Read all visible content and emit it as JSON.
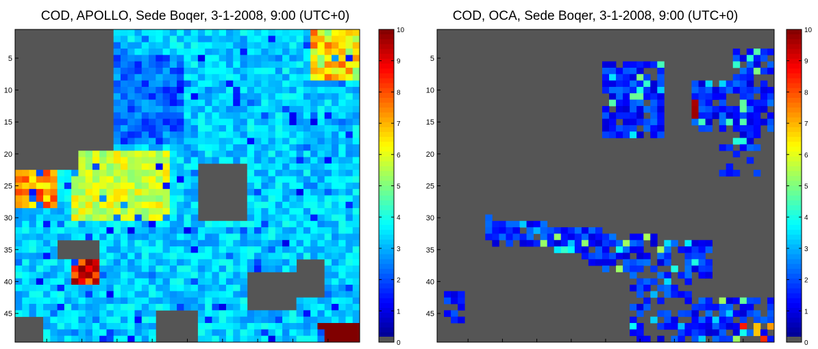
{
  "chart_data": [
    {
      "type": "heatmap",
      "title": "COD, APOLLO, Sede Boqer, 3-1-2008, 9:00 (UTC+0)",
      "grid_size": [
        49,
        49
      ],
      "ytick_labels": [
        "5",
        "10",
        "15",
        "20",
        "25",
        "30",
        "35",
        "40",
        "45"
      ],
      "colorbar": {
        "min": 0,
        "max": 10,
        "tick_labels": [
          "0",
          "1",
          "2",
          "3",
          "4",
          "5",
          "6",
          "7",
          "8",
          "9",
          "10"
        ],
        "colormap": "jet"
      },
      "background_color": "#555555",
      "xlabel": "",
      "ylabel": ""
    },
    {
      "type": "heatmap",
      "title": "COD, OCA, Sede Boqer, 3-1-2008, 9:00 (UTC+0)",
      "grid_size": [
        49,
        49
      ],
      "ytick_labels": [
        "5",
        "10",
        "15",
        "20",
        "25",
        "30",
        "35",
        "40",
        "45"
      ],
      "colorbar": {
        "min": 0,
        "max": 10,
        "tick_labels": [
          "0",
          "1",
          "2",
          "3",
          "4",
          "5",
          "6",
          "7",
          "8",
          "9",
          "10"
        ],
        "colormap": "jet"
      },
      "background_color": "#555555",
      "xlabel": "",
      "ylabel": ""
    }
  ]
}
